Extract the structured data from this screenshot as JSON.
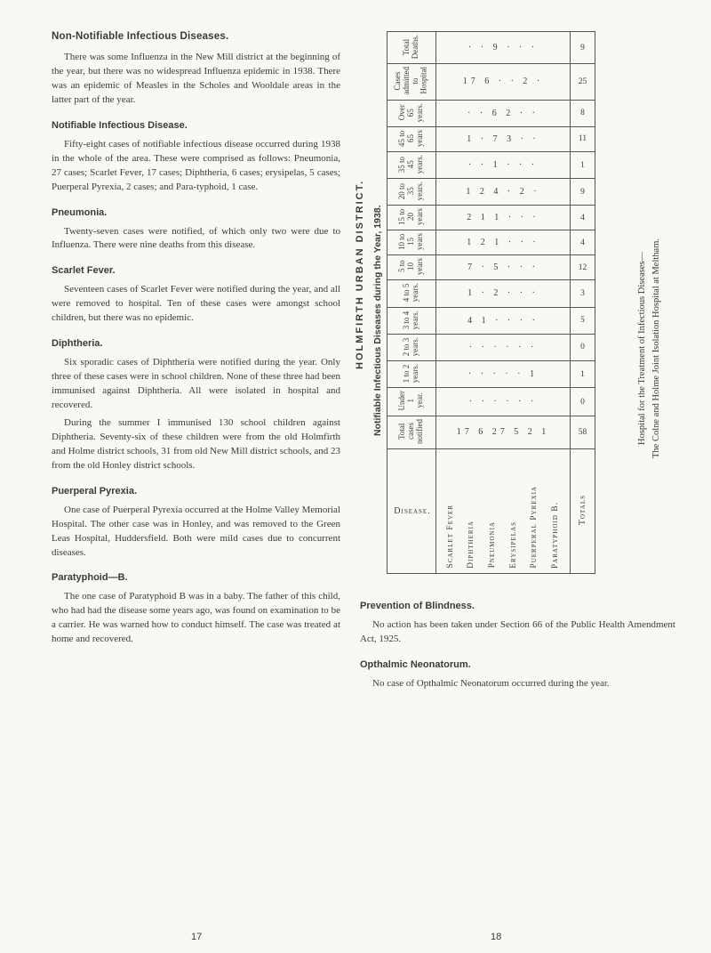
{
  "left": {
    "heading": "Non-Notifiable Infectious Diseases.",
    "para1": "There was some Influenza in the New Mill district at the beginning of the year, but there was no widespread Influenza epidemic in 1938. There was an epidemic of Measles in the Scholes and Wooldale areas in the latter part of the year.",
    "notifiable_heading": "Notifiable Infectious Disease.",
    "para2": "Fifty-eight cases of notifiable infectious disease occurred during 1938 in the whole of the area. These were comprised as follows: Pneumonia, 27 cases; Scarlet Fever, 17 cases; Diphtheria, 6 cases; erysipelas, 5 cases; Puerperal Pyrexia, 2 cases; and Para-typhoid, 1 case.",
    "pneumonia_heading": "Pneumonia.",
    "pneumonia_text": "Twenty-seven cases were notified, of which only two were due to Influenza. There were nine deaths from this disease.",
    "scarlet_heading": "Scarlet Fever.",
    "scarlet_text": "Seventeen cases of Scarlet Fever were notified during the year, and all were removed to hospital. Ten of these cases were amongst school children, but there was no epidemic.",
    "diphtheria_heading": "Diphtheria.",
    "diphtheria_p1": "Six sporadic cases of Diphtheria were notified during the year. Only three of these cases were in school children. None of these three had been immunised against Diphtheria. All were isolated in hospital and recovered.",
    "diphtheria_p2": "During the summer I immunised 130 school children against Diphtheria. Seventy-six of these children were from the old Holmfirth and Holme district schools, 31 from old New Mill district schools, and 23 from the old Honley district schools.",
    "puerperal_heading": "Puerperal Pyrexia.",
    "puerperal_text": "One case of Puerperal Pyrexia occurred at the Holme Valley Memorial Hospital. The other case was in Honley, and was removed to the Green Leas Hospital, Huddersfield. Both were mild cases due to concurrent diseases.",
    "paratyphoid_heading": "Paratyphoid—B.",
    "paratyphoid_text": "The one case of Paratyphoid B was in a baby. The father of this child, who had had the disease some years ago, was found on examination to be a carrier. He was warned how to conduct himself. The case was treated at home and recovered."
  },
  "table": {
    "district_label": "HOLMFIRTH URBAN DISTRICT.",
    "title": "Notifiable Infectious Diseases during the Year, 1938.",
    "footnote_line1": "Hospital for the Treatment of Infectious Diseases—",
    "footnote_line2": "The Colne and Holme Joint Isolation Hospital at Meltham.",
    "disease_header": "Disease.",
    "totals_header": "Totals",
    "age_rows": [
      {
        "label": "Total Deaths.",
        "vals": [
          ".",
          ".",
          "9",
          ".",
          ".",
          "."
        ],
        "total": "9"
      },
      {
        "label": "Cases admitted to Hospital",
        "vals": [
          "17",
          "6",
          ".",
          ".",
          "2",
          "."
        ],
        "total": "25"
      },
      {
        "label": "Over 65 years.",
        "vals": [
          ".",
          ".",
          "6",
          "2",
          ".",
          "."
        ],
        "total": "8"
      },
      {
        "label": "45 to 65 years",
        "vals": [
          "1",
          ".",
          "7",
          "3",
          ".",
          "."
        ],
        "total": "11"
      },
      {
        "label": "35 to 45 years.",
        "vals": [
          ".",
          ".",
          "1",
          ".",
          ".",
          "."
        ],
        "total": "1"
      },
      {
        "label": "20 to 35 years.",
        "vals": [
          "1",
          "2",
          "4",
          ".",
          "2",
          "."
        ],
        "total": "9"
      },
      {
        "label": "15 to 20 years",
        "vals": [
          "2",
          "1",
          "1",
          ".",
          ".",
          "."
        ],
        "total": "4"
      },
      {
        "label": "10 to 15 years",
        "vals": [
          "1",
          "2",
          "1",
          ".",
          ".",
          "."
        ],
        "total": "4"
      },
      {
        "label": "5 to 10 years",
        "vals": [
          "7",
          ".",
          "5",
          ".",
          ".",
          "."
        ],
        "total": "12"
      },
      {
        "label": "4 to 5 years.",
        "vals": [
          "1",
          ".",
          "2",
          ".",
          ".",
          "."
        ],
        "total": "3"
      },
      {
        "label": "3 to 4 years.",
        "vals": [
          "4",
          "1",
          ".",
          ".",
          ".",
          "."
        ],
        "total": "5"
      },
      {
        "label": "2 to 3 years.",
        "vals": [
          ".",
          ".",
          ".",
          ".",
          ".",
          "."
        ],
        "total": "0"
      },
      {
        "label": "1 to 2 years.",
        "vals": [
          ".",
          ".",
          ".",
          ".",
          ".",
          "1"
        ],
        "total": "1"
      },
      {
        "label": "Under 1 year.",
        "vals": [
          ".",
          ".",
          ".",
          ".",
          ".",
          "."
        ],
        "total": "0"
      },
      {
        "label": "Total cases notified",
        "vals": [
          "17",
          "6",
          "27",
          "5",
          "2",
          "1"
        ],
        "total": "58"
      }
    ],
    "diseases": [
      "Scarlet Fever",
      "Diphtheria",
      "Pneumonia",
      "Erysipelas",
      "Puerperal Pyrexia",
      "Paratyphoid B."
    ]
  },
  "right": {
    "prevention_heading": "Prevention of Blindness.",
    "prevention_text": "No action has been taken under Section 66 of the Public Health Amendment Act, 1925.",
    "opthalmic_heading": "Opthalmic Neonatorum.",
    "opthalmic_text": "No case of Opthalmic Neonatorum occurred during the year."
  },
  "page_left": "17",
  "page_right": "18"
}
